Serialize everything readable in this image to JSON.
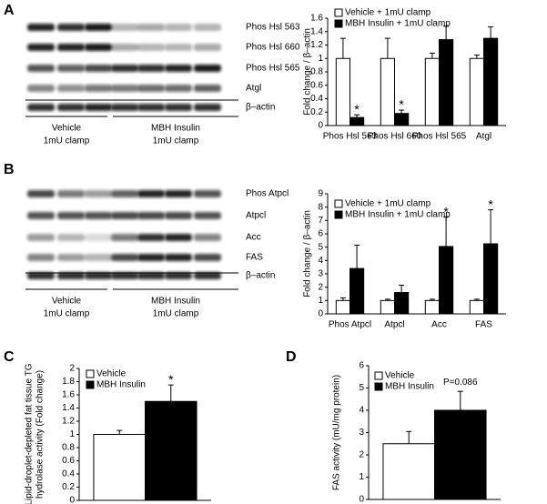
{
  "panels": [
    {
      "letter": "A",
      "blot": {
        "rows": [
          "Phos Hsl 563",
          "Phos Hsl 660",
          "Phos Hsl 565",
          "Atgl",
          "β–actin"
        ],
        "groups": [
          [
            "Vehicle",
            "1mU clamp"
          ],
          [
            "MBH Insulin",
            "1mU clamp"
          ]
        ]
      }
    },
    {
      "letter": "B",
      "blot": {
        "rows": [
          "Phos Atpcl",
          "Atpcl",
          "Acc",
          "FAS",
          "β–actin"
        ],
        "groups": [
          [
            "Vehicle",
            "1mU clamp"
          ],
          [
            "MBH Insulin",
            "1mU clamp"
          ]
        ]
      }
    },
    {
      "letter": "C"
    },
    {
      "letter": "D"
    }
  ],
  "chart_data": [
    {
      "type": "bar",
      "ylabel": [
        "Fold change / β–actin"
      ],
      "categories": [
        "Phos Hsl 563",
        "Phos Hsl 660",
        "Phos Hsl 565",
        "Atgl"
      ],
      "series": [
        {
          "name": "Vehicle + 1mU clamp",
          "color": "#ffffff",
          "values": [
            1,
            1,
            1,
            1
          ],
          "errors": [
            0.3,
            0.3,
            0.08,
            0.05
          ],
          "annotations": [
            null,
            null,
            null,
            null
          ]
        },
        {
          "name": "MBH Insulin + 1mU clamp",
          "color": "#000000",
          "values": [
            0.12,
            0.18,
            1.28,
            1.3
          ],
          "errors": [
            0.04,
            0.05,
            0.2,
            0.17
          ],
          "annotations": [
            "*",
            "*",
            null,
            null
          ]
        }
      ],
      "ylim": [
        0,
        1.6
      ],
      "yticks": [
        0,
        0.2,
        0.4,
        0.6,
        0.8,
        1,
        1.2,
        1.4,
        1.6
      ],
      "grid": false
    },
    {
      "type": "bar",
      "ylabel": [
        "Fold change / β–actin"
      ],
      "categories": [
        "Phos Atpcl",
        "Atpcl",
        "Acc",
        "FAS"
      ],
      "series": [
        {
          "name": "Vehicle + 1mU clamp",
          "color": "#ffffff",
          "values": [
            1,
            1,
            1,
            1
          ],
          "errors": [
            0.2,
            0.1,
            0.1,
            0.1
          ],
          "annotations": [
            null,
            null,
            null,
            null
          ]
        },
        {
          "name": "MBH Insulin + 1mU clamp",
          "color": "#000000",
          "values": [
            3.4,
            1.6,
            5.05,
            5.25
          ],
          "errors": [
            1.75,
            0.55,
            2.2,
            2.55
          ],
          "annotations": [
            null,
            null,
            "*",
            "*"
          ]
        }
      ],
      "ylim": [
        0,
        9
      ],
      "yticks": [
        0,
        1,
        2,
        3,
        4,
        5,
        6,
        7,
        8,
        9
      ],
      "grid": false
    },
    {
      "type": "bar",
      "ylabel": [
        "Lipid-droplet-depleted fat tissue TG",
        "hydrolase activity (Fold change)"
      ],
      "categories": [
        null
      ],
      "series": [
        {
          "name": "Vehicle",
          "color": "#ffffff",
          "values": [
            1
          ],
          "errors": [
            0.06
          ],
          "annotations": [
            null
          ]
        },
        {
          "name": "MBH Insulin",
          "color": "#000000",
          "values": [
            1.5
          ],
          "errors": [
            0.25
          ],
          "annotations": [
            "*"
          ]
        }
      ],
      "ylim": [
        0,
        2
      ],
      "yticks": [
        0,
        0.2,
        0.4,
        0.6,
        0.8,
        1,
        1.2,
        1.4,
        1.6,
        1.8,
        2
      ],
      "grid": false
    },
    {
      "type": "bar",
      "ylabel": [
        "FAS activity (mU/mg protein)"
      ],
      "categories": [
        null
      ],
      "series": [
        {
          "name": "Vehicle",
          "color": "#ffffff",
          "values": [
            2.5
          ],
          "errors": [
            0.55
          ],
          "annotations": [
            null
          ]
        },
        {
          "name": "MBH Insulin",
          "color": "#000000",
          "values": [
            4.0
          ],
          "errors": [
            0.85
          ],
          "annotations": [
            "P=0.086"
          ]
        }
      ],
      "ylim": [
        0,
        6
      ],
      "yticks": [
        0,
        1,
        2,
        3,
        4,
        5,
        6
      ],
      "grid": false
    }
  ]
}
